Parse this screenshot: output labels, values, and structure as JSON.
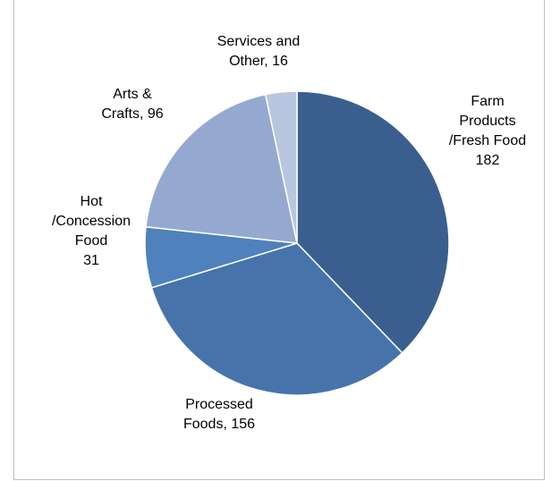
{
  "chart_data": {
    "type": "pie",
    "categories": [
      "Farm Products /Fresh Food",
      "Processed Foods",
      "Hot /Concession Food",
      "Arts & Crafts",
      "Services and Other"
    ],
    "values": [
      182,
      156,
      31,
      96,
      16
    ],
    "colors": [
      "#3a5f8f",
      "#4674aa",
      "#4f81bd",
      "#95a9d0",
      "#b8c6e0"
    ],
    "labels": [
      [
        "Farm",
        "Products",
        "/Fresh Food",
        "182"
      ],
      [
        "Processed",
        "Foods,  156"
      ],
      [
        "Hot",
        "/Concession",
        "Food",
        "31"
      ],
      [
        "Arts &",
        "Crafts,  96"
      ],
      [
        "Services and",
        "Other,  16"
      ]
    ],
    "title": "",
    "legend": "none"
  }
}
